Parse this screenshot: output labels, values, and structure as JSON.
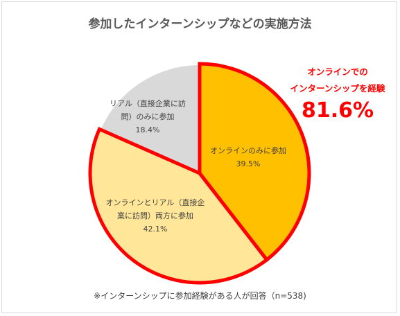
{
  "chart_data": {
    "type": "pie",
    "title": "参加したインターンシップなどの実施方法",
    "slices": [
      {
        "name": "オンラインのみに参加",
        "label_lines": [
          "オンラインのみに参加"
        ],
        "value": 39.5,
        "value_text": "39.5%",
        "color": "#ffc000"
      },
      {
        "name": "オンラインとリアル（直接企業に訪問）両方に参加",
        "label_lines": [
          "オンラインとリアル（直接企",
          "業に訪問）両方に参加"
        ],
        "value": 42.1,
        "value_text": "42.1%",
        "color": "#ffe699"
      },
      {
        "name": "リアル（直接企業に訪問）のみに参加",
        "label_lines": [
          "リアル（直接企業に訪",
          "問）のみに参加"
        ],
        "value": 18.4,
        "value_text": "18.4%",
        "color": "#d9d9d9"
      }
    ],
    "highlight_color": "#ff0000",
    "callout": {
      "line1": "オンラインでの",
      "line2": "インターンシップを経験",
      "value": "81.6%"
    },
    "note": "※インターンシップに参加経験がある人が回答（n=538)"
  }
}
